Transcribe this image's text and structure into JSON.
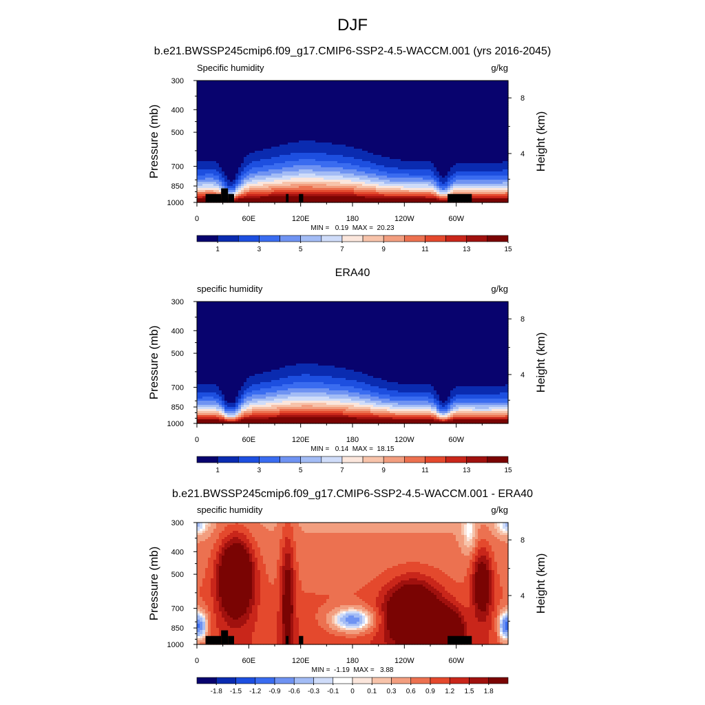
{
  "figure": {
    "title": "DJF",
    "subtitle": "b.e21.BWSSP245cmip6.f09_g17.CMIP6-SSP2-4.5-WACCM.001 (yrs 2016-2045)"
  },
  "colors": {
    "abs_scale": [
      "#08036e",
      "#0a2bb0",
      "#1d4fe0",
      "#3a6cf0",
      "#6f93f2",
      "#a3bcf5",
      "#cfdcf9",
      "#fbe6dc",
      "#f7c3aa",
      "#f29e7f",
      "#ec7150",
      "#e4492d",
      "#c9261a",
      "#a0110e",
      "#7a0403"
    ],
    "diff_scale": [
      "#08036e",
      "#0a2bb0",
      "#1d4fe0",
      "#3a6cf0",
      "#6f93f2",
      "#a3bcf5",
      "#cfdcf9",
      "#ffffff",
      "#fbe6dc",
      "#f7c3aa",
      "#f29e7f",
      "#ec7150",
      "#e4492d",
      "#c9261a",
      "#a0110e",
      "#7a0403"
    ],
    "topography": "#000000"
  },
  "chart_data": [
    {
      "type": "heatmap",
      "panel_title": "",
      "left_label": "Specific humidity",
      "units": "g/kg",
      "ylabel": "Pressure (mb)",
      "ylabel_right": "Height (km)",
      "x_ticks": [
        "0",
        "60E",
        "120E",
        "180",
        "120W",
        "60W"
      ],
      "x_values": [
        0,
        60,
        120,
        180,
        240,
        300
      ],
      "xlim": [
        0,
        360
      ],
      "y_ticks": [
        "300",
        "400",
        "500",
        "700",
        "850",
        "1000"
      ],
      "y_values": [
        300,
        400,
        500,
        700,
        850,
        1000
      ],
      "ylim": [
        1000,
        300
      ],
      "y_scale": "log",
      "right_ticks": [
        "8",
        "4"
      ],
      "right_values": [
        8,
        4
      ],
      "stats": "MIN =   0.19  MAX =  20.23",
      "colorbar_labels": [
        "1",
        "3",
        "5",
        "7",
        "9",
        "11",
        "13",
        "15"
      ],
      "field": "model",
      "topography": true
    },
    {
      "type": "heatmap",
      "panel_title": "ERA40",
      "left_label": "specific humidity",
      "units": "g/kg",
      "ylabel": "Pressure (mb)",
      "ylabel_right": "Height (km)",
      "x_ticks": [
        "0",
        "60E",
        "120E",
        "180",
        "120W",
        "60W"
      ],
      "x_values": [
        0,
        60,
        120,
        180,
        240,
        300
      ],
      "xlim": [
        0,
        360
      ],
      "y_ticks": [
        "300",
        "400",
        "500",
        "700",
        "850",
        "1000"
      ],
      "y_values": [
        300,
        400,
        500,
        700,
        850,
        1000
      ],
      "ylim": [
        1000,
        300
      ],
      "y_scale": "log",
      "right_ticks": [
        "8",
        "4"
      ],
      "right_values": [
        8,
        4
      ],
      "stats": "MIN =   0.14  MAX =  18.15",
      "colorbar_labels": [
        "1",
        "3",
        "5",
        "7",
        "9",
        "11",
        "13",
        "15"
      ],
      "field": "obs",
      "topography": false
    },
    {
      "type": "heatmap",
      "panel_title": "b.e21.BWSSP245cmip6.f09_g17.CMIP6-SSP2-4.5-WACCM.001 - ERA40",
      "left_label": "specific humidity",
      "units": "g/kg",
      "ylabel": "Pressure (mb)",
      "ylabel_right": "Height (km)",
      "x_ticks": [
        "0",
        "60E",
        "120E",
        "180",
        "120W",
        "60W"
      ],
      "x_values": [
        0,
        60,
        120,
        180,
        240,
        300
      ],
      "xlim": [
        0,
        360
      ],
      "y_ticks": [
        "300",
        "400",
        "500",
        "700",
        "850",
        "1000"
      ],
      "y_values": [
        300,
        400,
        500,
        700,
        850,
        1000
      ],
      "ylim": [
        1000,
        300
      ],
      "y_scale": "log",
      "right_ticks": [
        "8",
        "4"
      ],
      "right_values": [
        8,
        4
      ],
      "stats": "MIN =  -1.19  MAX =   3.88",
      "colorbar_labels": [
        "-1.8",
        "-1.5",
        "-1.2",
        "-0.9",
        "-0.6",
        "-0.3",
        "-0.1",
        "0",
        "0.1",
        "0.3",
        "0.6",
        "0.9",
        "1.2",
        "1.5",
        "1.8"
      ],
      "field": "diff",
      "topography": true
    }
  ]
}
